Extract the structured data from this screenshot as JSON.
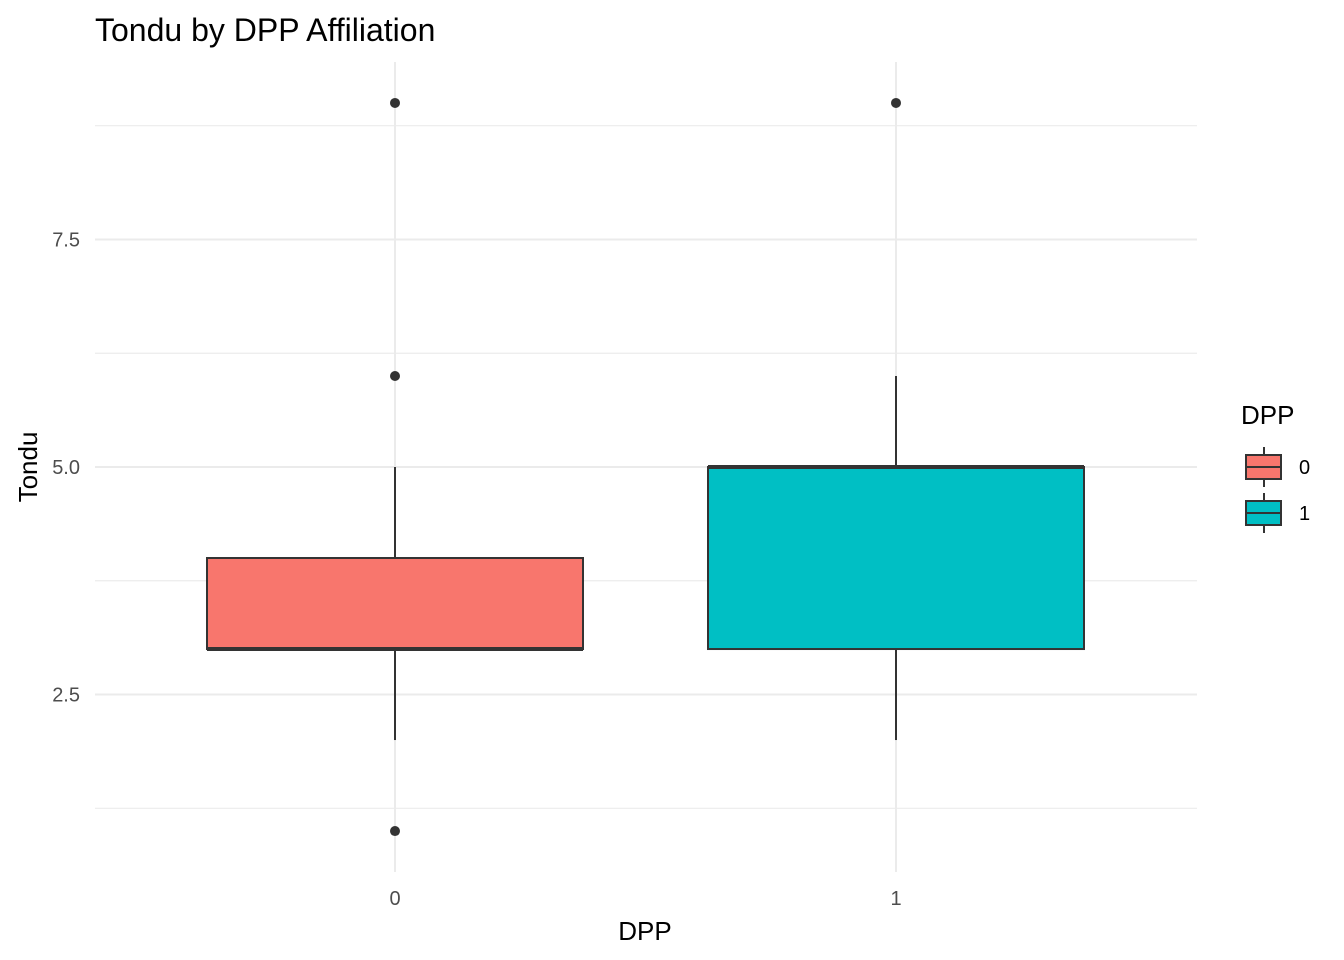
{
  "chart_data": {
    "type": "boxplot",
    "title": "Tondu by DPP Affiliation",
    "xlabel": "DPP",
    "ylabel": "Tondu",
    "categories": [
      "0",
      "1"
    ],
    "ylim": [
      0.55,
      9.45
    ],
    "y_ticks": [
      2.5,
      5.0,
      7.5
    ],
    "y_tick_labels": [
      "2.5",
      "5.0",
      "7.5"
    ],
    "grid": true,
    "legend": {
      "title": "DPP",
      "placement": "right",
      "entries": [
        "0",
        "1"
      ]
    },
    "series": [
      {
        "category": "0",
        "whisker_low": 2,
        "q1": 3,
        "median": 3,
        "q3": 4,
        "whisker_high": 5,
        "outliers": [
          1,
          6,
          9
        ],
        "color": "#F8766D"
      },
      {
        "category": "1",
        "whisker_low": 2,
        "q1": 3,
        "median": 5,
        "q3": 5,
        "whisker_high": 6,
        "outliers": [
          9
        ],
        "color": "#00BFC4"
      }
    ]
  }
}
